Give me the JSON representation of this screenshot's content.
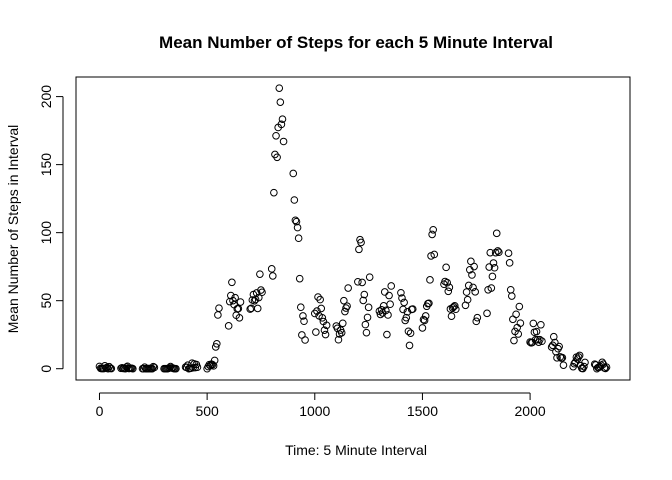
{
  "chart_data": {
    "type": "scatter",
    "title": "Mean Number of Steps for each 5 Minute Interval",
    "xlabel": "Time: 5 Minute Interval",
    "ylabel": "Mean Number of Steps in Interval",
    "xlim": [
      -109,
      2464
    ],
    "ylim": [
      -8.3,
      214.4
    ],
    "x_ticks": [
      0,
      500,
      1000,
      1500,
      2000
    ],
    "y_ticks": [
      0,
      50,
      100,
      150,
      200
    ],
    "grid": false,
    "marker": "open-circle",
    "points": [
      [
        0,
        1.7
      ],
      [
        5,
        0.3
      ],
      [
        10,
        0.1
      ],
      [
        15,
        0.2
      ],
      [
        20,
        0.1
      ],
      [
        25,
        2.1
      ],
      [
        30,
        0.5
      ],
      [
        35,
        0.9
      ],
      [
        40,
        0
      ],
      [
        45,
        1.5
      ],
      [
        50,
        0.3
      ],
      [
        55,
        0.1
      ],
      [
        100,
        0.3
      ],
      [
        105,
        0.7
      ],
      [
        110,
        0.2
      ],
      [
        115,
        0.3
      ],
      [
        120,
        0
      ],
      [
        125,
        1.1
      ],
      [
        130,
        1.8
      ],
      [
        135,
        0.2
      ],
      [
        140,
        0.2
      ],
      [
        145,
        0.4
      ],
      [
        150,
        0.3
      ],
      [
        155,
        0
      ],
      [
        200,
        0
      ],
      [
        205,
        0
      ],
      [
        210,
        1.1
      ],
      [
        215,
        0
      ],
      [
        220,
        0
      ],
      [
        225,
        0.1
      ],
      [
        230,
        0
      ],
      [
        235,
        0.2
      ],
      [
        240,
        0
      ],
      [
        245,
        0
      ],
      [
        250,
        1.5
      ],
      [
        255,
        0.9
      ],
      [
        300,
        0
      ],
      [
        305,
        0
      ],
      [
        310,
        0
      ],
      [
        315,
        0
      ],
      [
        320,
        0.2
      ],
      [
        325,
        0.6
      ],
      [
        330,
        1.6
      ],
      [
        335,
        0.6
      ],
      [
        340,
        0.5
      ],
      [
        345,
        0.1
      ],
      [
        350,
        0
      ],
      [
        355,
        0
      ],
      [
        400,
        1.2
      ],
      [
        405,
        0.9
      ],
      [
        410,
        2.6
      ],
      [
        415,
        0
      ],
      [
        420,
        0.3
      ],
      [
        425,
        0.4
      ],
      [
        430,
        4.1
      ],
      [
        435,
        0.7
      ],
      [
        440,
        3.5
      ],
      [
        445,
        0.8
      ],
      [
        450,
        3.1
      ],
      [
        455,
        1.1
      ],
      [
        500,
        0
      ],
      [
        505,
        1.6
      ],
      [
        510,
        3
      ],
      [
        515,
        2.2
      ],
      [
        520,
        3.3
      ],
      [
        525,
        3
      ],
      [
        530,
        2.1
      ],
      [
        535,
        6.1
      ],
      [
        540,
        16
      ],
      [
        545,
        18.3
      ],
      [
        550,
        39.5
      ],
      [
        555,
        44.5
      ],
      [
        600,
        31.5
      ],
      [
        605,
        49.3
      ],
      [
        610,
        53.8
      ],
      [
        615,
        63.5
      ],
      [
        620,
        50
      ],
      [
        625,
        47.1
      ],
      [
        630,
        52.2
      ],
      [
        635,
        39.3
      ],
      [
        640,
        44
      ],
      [
        645,
        44.2
      ],
      [
        650,
        37.4
      ],
      [
        655,
        49.0
      ],
      [
        700,
        43.8
      ],
      [
        705,
        44.4
      ],
      [
        710,
        50.5
      ],
      [
        715,
        54.5
      ],
      [
        720,
        49.9
      ],
      [
        725,
        50.9
      ],
      [
        730,
        55.7
      ],
      [
        735,
        44.3
      ],
      [
        740,
        52.3
      ],
      [
        745,
        69.5
      ],
      [
        750,
        57.8
      ],
      [
        755,
        56.2
      ],
      [
        800,
        73.4
      ],
      [
        805,
        68.2
      ],
      [
        810,
        129.4
      ],
      [
        815,
        157.5
      ],
      [
        820,
        171.2
      ],
      [
        825,
        155.4
      ],
      [
        830,
        177.3
      ],
      [
        835,
        206.2
      ],
      [
        840,
        195.9
      ],
      [
        845,
        179.6
      ],
      [
        850,
        183.4
      ],
      [
        855,
        167.0
      ],
      [
        900,
        143.5
      ],
      [
        905,
        124.0
      ],
      [
        910,
        109.1
      ],
      [
        915,
        108.1
      ],
      [
        920,
        103.7
      ],
      [
        925,
        95.9
      ],
      [
        930,
        66.2
      ],
      [
        935,
        45.2
      ],
      [
        940,
        24.8
      ],
      [
        945,
        38.8
      ],
      [
        950,
        34.9
      ],
      [
        955,
        21.1
      ],
      [
        1000,
        40.6
      ],
      [
        1005,
        26.9
      ],
      [
        1010,
        42.4
      ],
      [
        1015,
        52.7
      ],
      [
        1020,
        38.9
      ],
      [
        1025,
        50.8
      ],
      [
        1030,
        44.3
      ],
      [
        1035,
        37.4
      ],
      [
        1040,
        34.7
      ],
      [
        1045,
        28.3
      ],
      [
        1050,
        25.1
      ],
      [
        1055,
        31.9
      ],
      [
        1100,
        31.4
      ],
      [
        1105,
        29.7
      ],
      [
        1110,
        21.3
      ],
      [
        1115,
        25.5
      ],
      [
        1120,
        28.4
      ],
      [
        1125,
        26.5
      ],
      [
        1130,
        33.4
      ],
      [
        1135,
        50.0
      ],
      [
        1140,
        42.0
      ],
      [
        1145,
        44.6
      ],
      [
        1150,
        46.0
      ],
      [
        1155,
        59.3
      ],
      [
        1200,
        63.9
      ],
      [
        1205,
        87.7
      ],
      [
        1210,
        94.8
      ],
      [
        1215,
        92.8
      ],
      [
        1220,
        63.4
      ],
      [
        1225,
        50.2
      ],
      [
        1230,
        54.5
      ],
      [
        1235,
        32.4
      ],
      [
        1240,
        26.5
      ],
      [
        1245,
        37.7
      ],
      [
        1250,
        45.1
      ],
      [
        1255,
        67.3
      ],
      [
        1300,
        42.3
      ],
      [
        1305,
        39.9
      ],
      [
        1310,
        43.3
      ],
      [
        1315,
        40.98
      ],
      [
        1320,
        46.2
      ],
      [
        1325,
        56.4
      ],
      [
        1330,
        42.8
      ],
      [
        1335,
        25.1
      ],
      [
        1340,
        39.5
      ],
      [
        1345,
        53.8
      ],
      [
        1350,
        47.4
      ],
      [
        1355,
        60.8
      ],
      [
        1400,
        55.8
      ],
      [
        1405,
        51.9
      ],
      [
        1410,
        43.6
      ],
      [
        1415,
        48.7
      ],
      [
        1420,
        35.5
      ],
      [
        1425,
        37.5
      ],
      [
        1430,
        41.8
      ],
      [
        1435,
        27.5
      ],
      [
        1440,
        17.1
      ],
      [
        1445,
        26.1
      ],
      [
        1450,
        43.6
      ],
      [
        1455,
        43.8
      ],
      [
        1500,
        30.0
      ],
      [
        1505,
        36.1
      ],
      [
        1510,
        35.5
      ],
      [
        1515,
        38.8
      ],
      [
        1520,
        45.9
      ],
      [
        1525,
        47.8
      ],
      [
        1530,
        48.1
      ],
      [
        1535,
        65.3
      ],
      [
        1540,
        82.9
      ],
      [
        1545,
        98.7
      ],
      [
        1550,
        102.1
      ],
      [
        1555,
        83.96
      ],
      [
        1600,
        62.1
      ],
      [
        1605,
        64.1
      ],
      [
        1610,
        74.5
      ],
      [
        1615,
        63.2
      ],
      [
        1620,
        56.9
      ],
      [
        1625,
        59.8
      ],
      [
        1630,
        43.9
      ],
      [
        1635,
        38.6
      ],
      [
        1640,
        44.7
      ],
      [
        1645,
        45.5
      ],
      [
        1650,
        46.2
      ],
      [
        1655,
        43.7
      ],
      [
        1700,
        46.6
      ],
      [
        1705,
        56.3
      ],
      [
        1710,
        50.7
      ],
      [
        1715,
        61.2
      ],
      [
        1720,
        72.7
      ],
      [
        1725,
        78.9
      ],
      [
        1730,
        68.9
      ],
      [
        1735,
        59.7
      ],
      [
        1740,
        75.1
      ],
      [
        1745,
        56.5
      ],
      [
        1750,
        34.8
      ],
      [
        1755,
        37.5
      ],
      [
        1800,
        40.7
      ],
      [
        1805,
        58.0
      ],
      [
        1810,
        74.7
      ],
      [
        1815,
        85.3
      ],
      [
        1820,
        59.3
      ],
      [
        1825,
        67.8
      ],
      [
        1830,
        77.7
      ],
      [
        1835,
        74.2
      ],
      [
        1840,
        85.3
      ],
      [
        1845,
        99.5
      ],
      [
        1850,
        86.6
      ],
      [
        1855,
        85.6
      ],
      [
        1900,
        84.9
      ],
      [
        1905,
        77.8
      ],
      [
        1910,
        58.0
      ],
      [
        1915,
        53.4
      ],
      [
        1920,
        36.3
      ],
      [
        1925,
        20.7
      ],
      [
        1930,
        27.4
      ],
      [
        1935,
        40.0
      ],
      [
        1940,
        30.2
      ],
      [
        1945,
        25.5
      ],
      [
        1950,
        45.7
      ],
      [
        1955,
        33.5
      ],
      [
        2000,
        19.6
      ],
      [
        2005,
        19.0
      ],
      [
        2010,
        19.3
      ],
      [
        2015,
        33.3
      ],
      [
        2020,
        26.8
      ],
      [
        2025,
        21.2
      ],
      [
        2030,
        27.3
      ],
      [
        2035,
        21.3
      ],
      [
        2040,
        19.5
      ],
      [
        2045,
        21.3
      ],
      [
        2050,
        32.3
      ],
      [
        2055,
        20.2
      ],
      [
        2100,
        15.9
      ],
      [
        2105,
        17.2
      ],
      [
        2110,
        23.5
      ],
      [
        2115,
        19.2
      ],
      [
        2120,
        12.5
      ],
      [
        2125,
        8.0
      ],
      [
        2130,
        14.7
      ],
      [
        2135,
        16.3
      ],
      [
        2140,
        8.7
      ],
      [
        2145,
        7.8
      ],
      [
        2150,
        8.1
      ],
      [
        2155,
        2.6
      ],
      [
        2200,
        1.5
      ],
      [
        2205,
        3.7
      ],
      [
        2210,
        4.8
      ],
      [
        2215,
        8.5
      ],
      [
        2220,
        7.1
      ],
      [
        2225,
        8.7
      ],
      [
        2230,
        9.8
      ],
      [
        2235,
        2.2
      ],
      [
        2240,
        0.3
      ],
      [
        2245,
        0.1
      ],
      [
        2250,
        1.6
      ],
      [
        2255,
        4.6
      ],
      [
        2300,
        3.3
      ],
      [
        2305,
        2.8
      ],
      [
        2310,
        0
      ],
      [
        2315,
        0.8
      ],
      [
        2320,
        1.0
      ],
      [
        2325,
        1.6
      ],
      [
        2330,
        2.6
      ],
      [
        2335,
        4.7
      ],
      [
        2340,
        3.3
      ],
      [
        2345,
        0.6
      ],
      [
        2350,
        0.2
      ],
      [
        2355,
        1.1
      ]
    ]
  }
}
